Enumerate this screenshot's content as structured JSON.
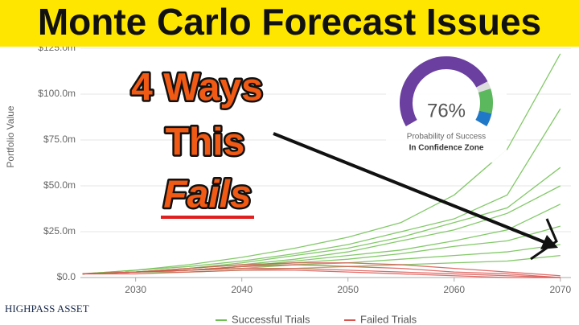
{
  "chart_data": {
    "type": "line",
    "title": "Monte Carlo Forecast Issues",
    "annotations": [
      "4 Ways",
      "This",
      "Fails"
    ],
    "y_label": "Portfolio Value",
    "x": [
      2025,
      2030,
      2035,
      2040,
      2045,
      2050,
      2055,
      2060,
      2065,
      2070
    ],
    "xlim": [
      2024.8,
      2071
    ],
    "xticks": [
      2030,
      2040,
      2050,
      2060,
      2070
    ],
    "ylim": [
      0,
      125
    ],
    "yticks": [
      {
        "value": 0,
        "label": "$0.0"
      },
      {
        "value": 25,
        "label": "$25.0m"
      },
      {
        "value": 50,
        "label": "$50.0m"
      },
      {
        "value": 75,
        "label": "$75.0m"
      },
      {
        "value": 100,
        "label": "$100.0m"
      },
      {
        "value": 125,
        "label": "$125.0m"
      }
    ],
    "groups": [
      {
        "name": "Successful Trials",
        "color": "#6dbf4f",
        "trials": [
          [
            2,
            4,
            7,
            11,
            16,
            22,
            30,
            45,
            70,
            122
          ],
          [
            2,
            4,
            6,
            9,
            13,
            18,
            25,
            32,
            45,
            92
          ],
          [
            2,
            3,
            5,
            8,
            12,
            16,
            22,
            30,
            38,
            60
          ],
          [
            2,
            3,
            5,
            7,
            10,
            14,
            20,
            26,
            35,
            50
          ],
          [
            2,
            3,
            4,
            6,
            9,
            12,
            15,
            20,
            26,
            40
          ],
          [
            2,
            3,
            4,
            6,
            8,
            10,
            13,
            17,
            20,
            28
          ],
          [
            2,
            3,
            4,
            5,
            7,
            8,
            10,
            12,
            14,
            18
          ],
          [
            2,
            3,
            3,
            4,
            5,
            6,
            7,
            8,
            9,
            12
          ]
        ]
      },
      {
        "name": "Failed Trials",
        "color": "#d9534f",
        "trials": [
          [
            2,
            3,
            5,
            7,
            8,
            8,
            7,
            5,
            3,
            1
          ],
          [
            2,
            3,
            4,
            6,
            7,
            6,
            5,
            3,
            2,
            0
          ],
          [
            2,
            3,
            4,
            5,
            5,
            4,
            3,
            2,
            1,
            0
          ],
          [
            2,
            2,
            3,
            4,
            4,
            3,
            2,
            1,
            0,
            0
          ]
        ]
      }
    ],
    "gauge": {
      "value": 76,
      "value_label": "76%",
      "caption": "Probability of Success",
      "subcaption": "In Confidence Zone",
      "color": "#6b3fa0"
    },
    "logo": "HIGHPASS ASSET"
  }
}
